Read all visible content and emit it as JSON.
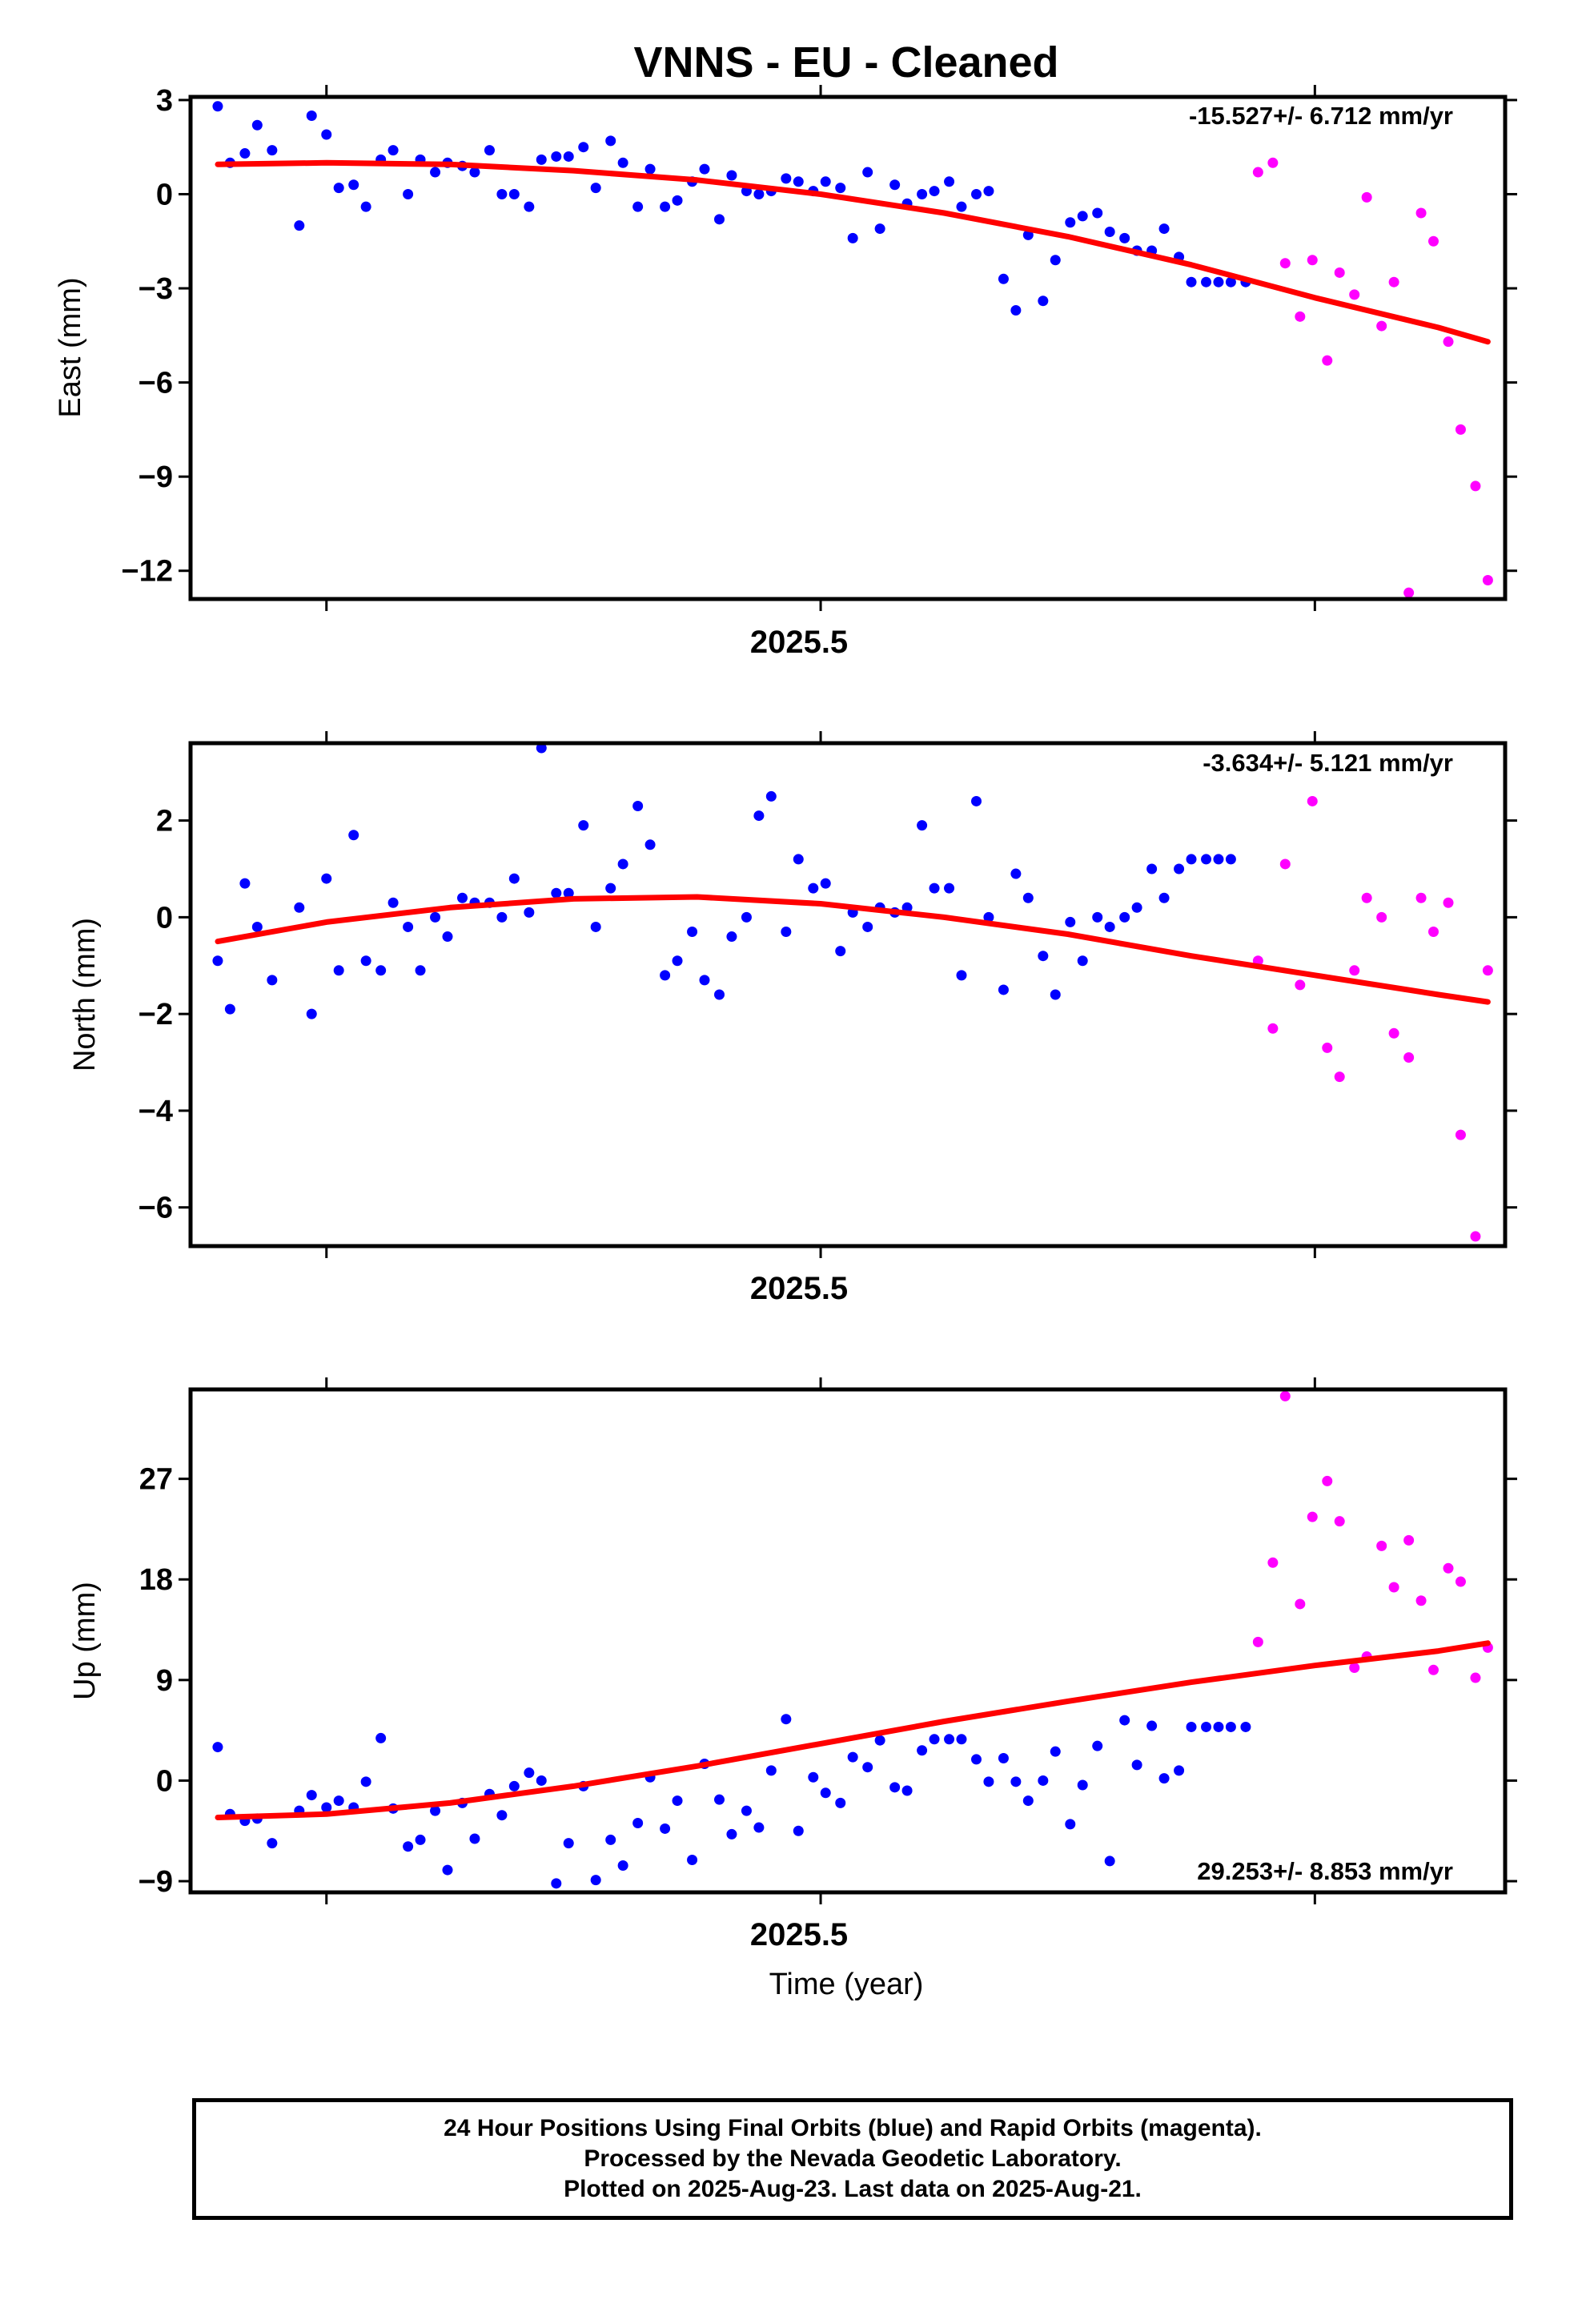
{
  "title": "VNNS  - EU - Cleaned",
  "xlabel": "Time (year)",
  "xtick_label": "2025.5",
  "caption": {
    "line1": "24 Hour Positions Using Final Orbits (blue) and Rapid Orbits (magenta).",
    "line2": "Processed by the Nevada Geodetic Laboratory.",
    "line3": "Plotted on 2025-Aug-23. Last data on 2025-Aug-21."
  },
  "colors": {
    "final": "#0000ff",
    "rapid": "#ff00ff",
    "fit": "#ff0000",
    "axis": "#000000"
  },
  "chart_data": [
    {
      "type": "scatter",
      "panel": "east",
      "ylabel": "East (mm)",
      "rate_text": "-15.527+/- 6.712 mm/yr",
      "xlim": [
        2025.245,
        2025.777
      ],
      "ylim": [
        -12.9,
        3.1
      ],
      "yticks": [
        3,
        0,
        -3,
        -6,
        -9,
        -12
      ],
      "xticks": [
        2025.3,
        2025.5,
        2025.7
      ],
      "series": [
        {
          "key": "final",
          "x": [
            2025.256,
            2025.261,
            2025.267,
            2025.272,
            2025.278,
            2025.289,
            2025.294,
            2025.3,
            2025.305,
            2025.311,
            2025.316,
            2025.322,
            2025.327,
            2025.333,
            2025.338,
            2025.344,
            2025.349,
            2025.355,
            2025.36,
            2025.366,
            2025.371,
            2025.376,
            2025.382,
            2025.387,
            2025.393,
            2025.398,
            2025.404,
            2025.409,
            2025.415,
            2025.42,
            2025.426,
            2025.431,
            2025.437,
            2025.442,
            2025.448,
            2025.453,
            2025.459,
            2025.464,
            2025.47,
            2025.475,
            2025.48,
            2025.486,
            2025.491,
            2025.497,
            2025.502,
            2025.508,
            2025.513,
            2025.519,
            2025.524,
            2025.53,
            2025.535,
            2025.541,
            2025.546,
            2025.552,
            2025.557,
            2025.563,
            2025.568,
            2025.574,
            2025.579,
            2025.584,
            2025.59,
            2025.595,
            2025.601,
            2025.606,
            2025.612,
            2025.617,
            2025.623,
            2025.628,
            2025.634,
            2025.639,
            2025.645,
            2025.65,
            2025.656,
            2025.661,
            2025.666,
            2025.672
          ],
          "y": [
            2.8,
            1.0,
            1.3,
            2.2,
            1.4,
            -1.0,
            2.5,
            1.9,
            0.2,
            0.3,
            -0.4,
            1.1,
            1.4,
            0.0,
            1.1,
            0.7,
            1.0,
            0.9,
            0.7,
            1.4,
            0.0,
            0.0,
            -0.4,
            1.1,
            1.2,
            1.2,
            1.5,
            0.2,
            1.7,
            1.0,
            -0.4,
            0.8,
            -0.4,
            -0.2,
            0.4,
            0.8,
            -0.8,
            0.6,
            0.1,
            0.0,
            0.1,
            0.5,
            0.4,
            0.1,
            0.4,
            0.2,
            -1.4,
            0.7,
            -1.1,
            0.3,
            -0.3,
            0.0,
            0.1,
            0.4,
            -0.4,
            0.0,
            0.1,
            -2.7,
            -3.7,
            -1.3,
            -3.4,
            -2.1,
            -0.9,
            -0.7,
            -0.6,
            -1.2,
            -1.4,
            -1.8,
            -1.8,
            -1.1,
            -2.0,
            -2.8,
            -2.8,
            -2.8,
            -2.8,
            -2.8
          ]
        },
        {
          "key": "rapid",
          "x": [
            2025.677,
            2025.683,
            2025.688,
            2025.694,
            2025.699,
            2025.705,
            2025.71,
            2025.716,
            2025.721,
            2025.727,
            2025.732,
            2025.738,
            2025.743,
            2025.748,
            2025.754,
            2025.759,
            2025.765,
            2025.77
          ],
          "y": [
            0.7,
            1.0,
            -2.2,
            -3.9,
            -2.1,
            -5.3,
            -2.5,
            -3.2,
            -0.1,
            -4.2,
            -2.8,
            -12.7,
            -0.6,
            -1.5,
            -4.7,
            -7.5,
            -9.3,
            -12.3
          ]
        }
      ],
      "fit": {
        "x": [
          2025.256,
          2025.3,
          2025.35,
          2025.4,
          2025.45,
          2025.5,
          2025.55,
          2025.6,
          2025.65,
          2025.7,
          2025.75,
          2025.77
        ],
        "y": [
          0.95,
          1.0,
          0.95,
          0.75,
          0.45,
          0.0,
          -0.6,
          -1.35,
          -2.25,
          -3.3,
          -4.25,
          -4.7
        ]
      }
    },
    {
      "type": "scatter",
      "panel": "north",
      "ylabel": "North (mm)",
      "rate_text": "-3.634+/- 5.121 mm/yr",
      "xlim": [
        2025.245,
        2025.777
      ],
      "ylim": [
        -6.8,
        3.6
      ],
      "yticks": [
        2,
        0,
        -2,
        -4,
        -6
      ],
      "xticks": [
        2025.3,
        2025.5,
        2025.7
      ],
      "series": [
        {
          "key": "final",
          "x": [
            2025.256,
            2025.261,
            2025.267,
            2025.272,
            2025.278,
            2025.289,
            2025.294,
            2025.3,
            2025.305,
            2025.311,
            2025.316,
            2025.322,
            2025.327,
            2025.333,
            2025.338,
            2025.344,
            2025.349,
            2025.355,
            2025.36,
            2025.366,
            2025.371,
            2025.376,
            2025.382,
            2025.387,
            2025.393,
            2025.398,
            2025.404,
            2025.409,
            2025.415,
            2025.42,
            2025.426,
            2025.431,
            2025.437,
            2025.442,
            2025.448,
            2025.453,
            2025.459,
            2025.464,
            2025.47,
            2025.475,
            2025.48,
            2025.486,
            2025.491,
            2025.497,
            2025.502,
            2025.508,
            2025.513,
            2025.519,
            2025.524,
            2025.53,
            2025.535,
            2025.541,
            2025.546,
            2025.552,
            2025.557,
            2025.563,
            2025.568,
            2025.574,
            2025.579,
            2025.584,
            2025.59,
            2025.595,
            2025.601,
            2025.606,
            2025.612,
            2025.617,
            2025.623,
            2025.628,
            2025.634,
            2025.639,
            2025.645,
            2025.65,
            2025.656,
            2025.661,
            2025.666
          ],
          "y": [
            -0.9,
            -1.9,
            0.7,
            -0.2,
            -1.3,
            0.2,
            -2.0,
            0.8,
            -1.1,
            1.7,
            -0.9,
            -1.1,
            0.3,
            -0.2,
            -1.1,
            0.0,
            -0.4,
            0.4,
            0.3,
            0.3,
            0.0,
            0.8,
            0.1,
            3.5,
            0.5,
            0.5,
            1.9,
            -0.2,
            0.6,
            1.1,
            2.3,
            1.5,
            -1.2,
            -0.9,
            -0.3,
            -1.3,
            -1.6,
            -0.4,
            0.0,
            2.1,
            2.5,
            -0.3,
            1.2,
            0.6,
            0.7,
            -0.7,
            0.1,
            -0.2,
            0.2,
            0.1,
            0.2,
            1.9,
            0.6,
            0.6,
            -1.2,
            2.4,
            0.0,
            -1.5,
            0.9,
            0.4,
            -0.8,
            -1.6,
            -0.1,
            -0.9,
            0.0,
            -0.2,
            0.0,
            0.2,
            1.0,
            0.4,
            1.0,
            1.2,
            1.2,
            1.2,
            1.2
          ]
        },
        {
          "key": "rapid",
          "x": [
            2025.677,
            2025.683,
            2025.688,
            2025.694,
            2025.699,
            2025.705,
            2025.71,
            2025.716,
            2025.721,
            2025.727,
            2025.732,
            2025.738,
            2025.743,
            2025.748,
            2025.754,
            2025.759,
            2025.765,
            2025.77
          ],
          "y": [
            -0.9,
            -2.3,
            1.1,
            -1.4,
            2.4,
            -2.7,
            -3.3,
            -1.1,
            0.4,
            0.0,
            -2.4,
            -2.9,
            0.4,
            -0.3,
            0.3,
            -4.5,
            -6.6,
            -1.1
          ]
        }
      ],
      "fit": {
        "x": [
          2025.256,
          2025.3,
          2025.35,
          2025.4,
          2025.45,
          2025.5,
          2025.55,
          2025.6,
          2025.65,
          2025.7,
          2025.75,
          2025.77
        ],
        "y": [
          -0.5,
          -0.1,
          0.2,
          0.38,
          0.42,
          0.28,
          0.0,
          -0.35,
          -0.8,
          -1.2,
          -1.6,
          -1.75
        ]
      }
    },
    {
      "type": "scatter",
      "panel": "up",
      "ylabel": "Up (mm)",
      "rate_text": "29.253+/- 8.853 mm/yr",
      "xlim": [
        2025.245,
        2025.777
      ],
      "ylim": [
        -10,
        35
      ],
      "yticks": [
        27,
        18,
        9,
        0,
        -9
      ],
      "xticks": [
        2025.3,
        2025.5,
        2025.7
      ],
      "series": [
        {
          "key": "final",
          "x": [
            2025.256,
            2025.261,
            2025.267,
            2025.272,
            2025.278,
            2025.289,
            2025.294,
            2025.3,
            2025.305,
            2025.311,
            2025.316,
            2025.322,
            2025.327,
            2025.333,
            2025.338,
            2025.344,
            2025.349,
            2025.355,
            2025.36,
            2025.366,
            2025.371,
            2025.376,
            2025.382,
            2025.387,
            2025.393,
            2025.398,
            2025.404,
            2025.409,
            2025.415,
            2025.42,
            2025.426,
            2025.431,
            2025.437,
            2025.442,
            2025.448,
            2025.453,
            2025.459,
            2025.464,
            2025.47,
            2025.475,
            2025.48,
            2025.486,
            2025.491,
            2025.497,
            2025.502,
            2025.508,
            2025.513,
            2025.519,
            2025.524,
            2025.53,
            2025.535,
            2025.541,
            2025.546,
            2025.552,
            2025.557,
            2025.563,
            2025.568,
            2025.574,
            2025.579,
            2025.584,
            2025.59,
            2025.595,
            2025.601,
            2025.606,
            2025.612,
            2025.617,
            2025.623,
            2025.628,
            2025.634,
            2025.639,
            2025.645,
            2025.65,
            2025.656,
            2025.661,
            2025.666,
            2025.672
          ],
          "y": [
            3.0,
            -3.0,
            -3.6,
            -3.4,
            -5.6,
            -2.7,
            -1.3,
            -2.4,
            -1.8,
            -2.4,
            -0.1,
            3.8,
            -2.5,
            -5.9,
            -5.3,
            -2.7,
            -8.0,
            -2.0,
            -5.2,
            -1.2,
            -3.1,
            -0.5,
            0.7,
            0.0,
            -9.2,
            -5.6,
            -0.5,
            -8.9,
            -5.3,
            -7.6,
            -3.8,
            0.3,
            -4.3,
            -1.8,
            -7.1,
            1.5,
            -1.7,
            -4.8,
            -2.7,
            -4.2,
            0.9,
            5.5,
            -4.5,
            0.3,
            -1.1,
            -2.0,
            2.1,
            1.2,
            3.6,
            -0.6,
            -0.9,
            2.7,
            3.7,
            3.7,
            3.7,
            1.9,
            -0.1,
            2.0,
            -0.1,
            -1.8,
            0.0,
            2.6,
            -3.9,
            -0.4,
            3.1,
            -7.2,
            5.4,
            1.4,
            4.9,
            0.2,
            0.9,
            4.8,
            4.8,
            4.8,
            4.8,
            4.8
          ]
        },
        {
          "key": "rapid",
          "x": [
            2025.677,
            2025.683,
            2025.688,
            2025.694,
            2025.699,
            2025.705,
            2025.71,
            2025.716,
            2025.721,
            2025.727,
            2025.732,
            2025.738,
            2025.743,
            2025.748,
            2025.754,
            2025.759,
            2025.765,
            2025.77
          ],
          "y": [
            12.4,
            19.5,
            34.4,
            15.8,
            23.6,
            26.8,
            23.2,
            10.1,
            11.1,
            21.0,
            17.3,
            21.5,
            16.1,
            9.9,
            19.0,
            17.8,
            9.2,
            11.9
          ]
        }
      ],
      "fit": {
        "x": [
          2025.256,
          2025.3,
          2025.35,
          2025.4,
          2025.45,
          2025.5,
          2025.55,
          2025.6,
          2025.65,
          2025.7,
          2025.75,
          2025.77
        ],
        "y": [
          -3.3,
          -3.0,
          -2.0,
          -0.5,
          1.3,
          3.3,
          5.3,
          7.1,
          8.8,
          10.3,
          11.6,
          12.3
        ]
      }
    }
  ]
}
